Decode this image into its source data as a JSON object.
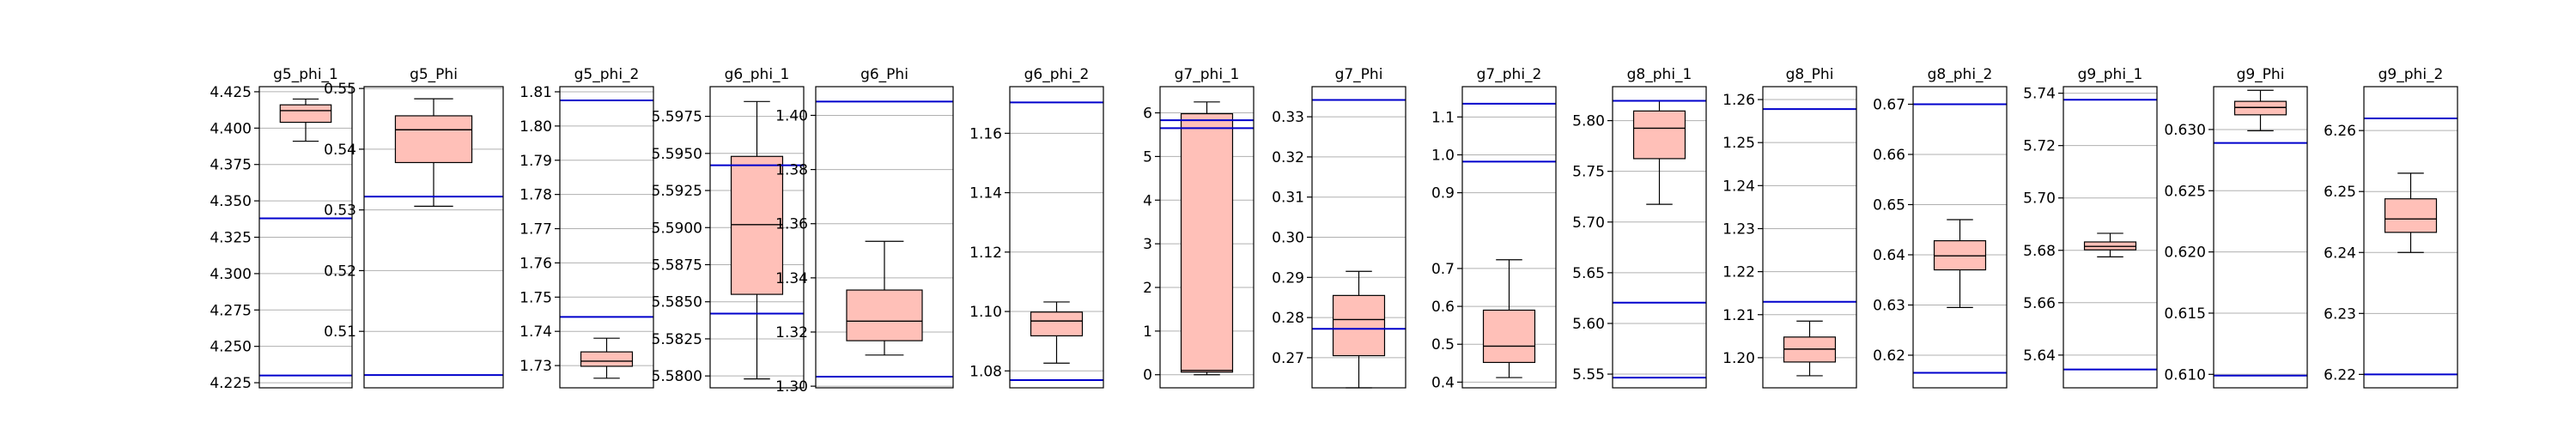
{
  "chart_data": {
    "type": "box",
    "colors": {
      "box_fill": "#ffc0b8",
      "reference_line": "#0000cc",
      "grid": "#b0b0b0"
    },
    "grid": true,
    "panels": [
      {
        "title": "g5_phi_1",
        "ylim": [
          4.2215,
          4.4285
        ],
        "ticks": [
          4.225,
          4.25,
          4.275,
          4.3,
          4.325,
          4.35,
          4.375,
          4.4,
          4.425
        ],
        "tick_labels": [
          "4.225",
          "4.250",
          "4.275",
          "4.300",
          "4.325",
          "4.350",
          "4.375",
          "4.400",
          "4.425"
        ],
        "box": {
          "whisker_low": 4.391,
          "q1": 4.404,
          "median": 4.412,
          "q3": 4.416,
          "whisker_high": 4.42
        },
        "ref_lines": [
          4.338,
          4.23
        ]
      },
      {
        "title": "g5_Phi",
        "ylim": [
          0.5007,
          0.5503
        ],
        "ticks": [
          0.51,
          0.52,
          0.53,
          0.54,
          0.55
        ],
        "tick_labels": [
          "0.51",
          "0.52",
          "0.53",
          "0.54",
          "0.55"
        ],
        "box": {
          "whisker_low": 0.5306,
          "q1": 0.5378,
          "median": 0.5432,
          "q3": 0.5455,
          "whisker_high": 0.5483
        },
        "ref_lines": [
          0.5322,
          0.5028
        ]
      },
      {
        "title": "g5_phi_2",
        "ylim": [
          1.7235,
          1.8115
        ],
        "ticks": [
          1.73,
          1.74,
          1.75,
          1.76,
          1.77,
          1.78,
          1.79,
          1.8,
          1.81
        ],
        "tick_labels": [
          "1.73",
          "1.74",
          "1.75",
          "1.76",
          "1.77",
          "1.78",
          "1.79",
          "1.80",
          "1.81"
        ],
        "box": {
          "whisker_low": 1.7263,
          "q1": 1.7298,
          "median": 1.7313,
          "q3": 1.734,
          "whisker_high": 1.738
        },
        "ref_lines": [
          1.8075,
          1.7442
        ]
      },
      {
        "title": "g6_phi_1",
        "ylim": [
          5.5792,
          5.5995
        ],
        "ticks": [
          5.58,
          5.5825,
          5.585,
          5.5875,
          5.59,
          5.5925,
          5.595,
          5.5975
        ],
        "tick_labels": [
          "5.5800",
          "5.5825",
          "5.5850",
          "5.5875",
          "5.5900",
          "5.5925",
          "5.5950",
          "5.5975"
        ],
        "box": {
          "whisker_low": 5.5798,
          "q1": 5.5855,
          "median": 5.5902,
          "q3": 5.5948,
          "whisker_high": 5.5985
        },
        "ref_lines": [
          5.5942,
          5.5842
        ]
      },
      {
        "title": "g6_Phi",
        "ylim": [
          1.2994,
          1.4106
        ],
        "ticks": [
          1.3,
          1.32,
          1.34,
          1.36,
          1.38,
          1.4
        ],
        "tick_labels": [
          "1.30",
          "1.32",
          "1.34",
          "1.36",
          "1.38",
          "1.40"
        ],
        "box": {
          "whisker_low": 1.3115,
          "q1": 1.3168,
          "median": 1.324,
          "q3": 1.3355,
          "whisker_high": 1.3535
        },
        "ref_lines": [
          1.4051,
          1.3035
        ]
      },
      {
        "title": "g6_phi_2",
        "ylim": [
          1.0743,
          1.1757
        ],
        "ticks": [
          1.08,
          1.1,
          1.12,
          1.14,
          1.16
        ],
        "tick_labels": [
          "1.08",
          "1.10",
          "1.12",
          "1.14",
          "1.16"
        ],
        "box": {
          "whisker_low": 1.0826,
          "q1": 1.0918,
          "median": 1.0968,
          "q3": 1.0998,
          "whisker_high": 1.1032
        },
        "ref_lines": [
          1.1704,
          1.0769
        ]
      },
      {
        "title": "g7_phi_1",
        "ylim": [
          -0.3,
          6.6
        ],
        "ticks": [
          0,
          1,
          2,
          3,
          4,
          5,
          6
        ],
        "tick_labels": [
          "0",
          "1",
          "2",
          "3",
          "4",
          "5",
          "6"
        ],
        "box": {
          "whisker_low": 0.0,
          "q1": 0.06,
          "median": 0.1,
          "q3": 5.98,
          "whisker_high": 6.25
        },
        "ref_lines": [
          5.83,
          5.65
        ]
      },
      {
        "title": "g7_Phi",
        "ylim": [
          0.2625,
          0.3375
        ],
        "ticks": [
          0.27,
          0.28,
          0.29,
          0.3,
          0.31,
          0.32,
          0.33
        ],
        "tick_labels": [
          "0.27",
          "0.28",
          "0.29",
          "0.30",
          "0.31",
          "0.32",
          "0.33"
        ],
        "box": {
          "whisker_low": 0.2625,
          "q1": 0.2705,
          "median": 0.2795,
          "q3": 0.2855,
          "whisker_high": 0.2915
        },
        "ref_lines": [
          0.3342,
          0.2772
        ]
      },
      {
        "title": "g7_phi_2",
        "ylim": [
          0.385,
          1.18
        ],
        "ticks": [
          0.4,
          0.5,
          0.6,
          0.7,
          0.9,
          1.0,
          1.1
        ],
        "tick_labels": [
          "0.4",
          "0.5",
          "0.6",
          "0.7",
          "0.9",
          "1.0",
          "1.1"
        ],
        "box": {
          "whisker_low": 0.412,
          "q1": 0.452,
          "median": 0.495,
          "q3": 0.59,
          "whisker_high": 0.723
        },
        "ref_lines": [
          1.135,
          0.982
        ]
      },
      {
        "title": "g8_phi_1",
        "ylim": [
          5.5365,
          5.8335
        ],
        "ticks": [
          5.55,
          5.6,
          5.65,
          5.7,
          5.75,
          5.8
        ],
        "tick_labels": [
          "5.55",
          "5.60",
          "5.65",
          "5.70",
          "5.75",
          "5.80"
        ],
        "box": {
          "whisker_low": 5.7175,
          "q1": 5.7625,
          "median": 5.7925,
          "q3": 5.8095,
          "whisker_high": 5.8195
        },
        "ref_lines": [
          5.8195,
          5.6205,
          5.5465
        ]
      },
      {
        "title": "g8_Phi",
        "ylim": [
          1.193,
          1.263
        ],
        "ticks": [
          1.2,
          1.21,
          1.22,
          1.23,
          1.24,
          1.25,
          1.26
        ],
        "tick_labels": [
          "1.20",
          "1.21",
          "1.22",
          "1.23",
          "1.24",
          "1.25",
          "1.26"
        ],
        "box": {
          "whisker_low": 1.1958,
          "q1": 1.199,
          "median": 1.202,
          "q3": 1.2048,
          "whisker_high": 1.2085
        },
        "ref_lines": [
          1.2578,
          1.213
        ]
      },
      {
        "title": "g8_phi_2",
        "ylim": [
          1.193,
          1.263
        ],
        "ticks": [],
        "tick_labels": [],
        "axis2": {
          "ylim": [
            0.6135,
            0.6735
          ],
          "ticks": [
            0.62,
            0.63,
            0.64,
            0.65,
            0.66,
            0.67
          ],
          "tick_labels": [
            "0.62",
            "0.63",
            "0.64",
            "0.65",
            "0.66",
            "0.67"
          ]
        },
        "box": {
          "whisker_low": 0.6295,
          "q1": 0.637,
          "median": 0.6398,
          "q3": 0.6428,
          "whisker_high": 0.647
        },
        "ref_lines": [
          0.67,
          0.6165
        ]
      },
      {
        "title": "g9_phi_1",
        "ylim": [
          5.6275,
          5.7425
        ],
        "ticks": [
          5.64,
          5.66,
          5.68,
          5.7,
          5.72,
          5.74
        ],
        "tick_labels": [
          "5.64",
          "5.66",
          "5.68",
          "5.70",
          "5.72",
          "5.74"
        ],
        "box": {
          "whisker_low": 5.6775,
          "q1": 5.6802,
          "median": 5.6815,
          "q3": 5.6832,
          "whisker_high": 5.6865
        },
        "ref_lines": [
          5.7375,
          5.6345
        ]
      },
      {
        "title": "g9_Phi",
        "ylim": [
          0.6089,
          0.6335
        ],
        "ticks": [
          0.61,
          0.615,
          0.62,
          0.625,
          0.63
        ],
        "tick_labels": [
          "0.610",
          "0.615",
          "0.620",
          "0.625",
          "0.630"
        ],
        "box": {
          "whisker_low": 0.6299,
          "q1": 0.6312,
          "median": 0.6318,
          "q3": 0.6323,
          "whisker_high": 0.6332
        },
        "ref_lines": [
          0.6289,
          0.6099
        ]
      },
      {
        "title": "g9_phi_2",
        "ylim": [
          6.2178,
          6.2672
        ],
        "ticks": [
          6.22,
          6.23,
          6.24,
          6.25,
          6.26
        ],
        "tick_labels": [
          "6.22",
          "6.23",
          "6.24",
          "6.25",
          "6.26"
        ],
        "box": {
          "whisker_low": 6.24,
          "q1": 6.2433,
          "median": 6.2455,
          "q3": 6.2488,
          "whisker_high": 6.253
        },
        "ref_lines": [
          6.262,
          6.22
        ]
      }
    ]
  }
}
